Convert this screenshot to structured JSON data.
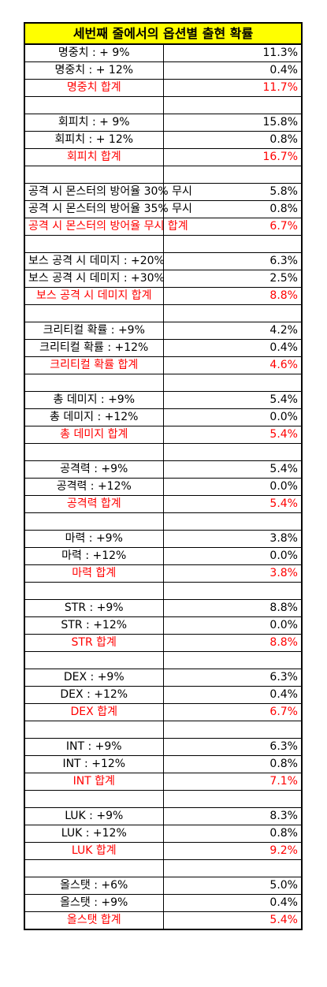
{
  "title": "세번째 줄에서의 옵션별 출현 확률",
  "groups": [
    {
      "rows": [
        [
          "명중치 : + 9%",
          "11.3%"
        ],
        [
          "명중치 : + 12%",
          "0.4%"
        ]
      ],
      "total": [
        "명중치 합계",
        "11.7%"
      ]
    },
    {
      "rows": [
        [
          "회피치 : + 9%",
          "15.8%"
        ],
        [
          "회피치 : + 12%",
          "0.8%"
        ]
      ],
      "total": [
        "회피치 합계",
        "16.7%"
      ]
    },
    {
      "rows": [
        [
          "공격 시 몬스터의 방어율 30% 무시",
          "5.8%"
        ],
        [
          "공격 시 몬스터의 방어율 35% 무시",
          "0.8%"
        ]
      ],
      "total": [
        "공격 시 몬스터의 방어율 무시 합계",
        "6.7%"
      ]
    },
    {
      "rows": [
        [
          "보스 공격 시 데미지 : +20%",
          "6.3%"
        ],
        [
          "보스 공격 시 데미지 : +30%",
          "2.5%"
        ]
      ],
      "total": [
        "보스 공격 시 데미지 합계",
        "8.8%"
      ]
    },
    {
      "rows": [
        [
          "크리티컬 확률 : +9%",
          "4.2%"
        ],
        [
          "크리티컬 확률 : +12%",
          "0.4%"
        ]
      ],
      "total": [
        "크리티컬 확률 합계",
        "4.6%"
      ]
    },
    {
      "rows": [
        [
          "총 데미지 : +9%",
          "5.4%"
        ],
        [
          "총 데미지 : +12%",
          "0.0%"
        ]
      ],
      "total": [
        "총 데미지 합계",
        "5.4%"
      ]
    },
    {
      "rows": [
        [
          "공격력 : +9%",
          "5.4%"
        ],
        [
          "공격력 : +12%",
          "0.0%"
        ]
      ],
      "total": [
        "공격력 합계",
        "5.4%"
      ]
    },
    {
      "rows": [
        [
          "마력 : +9%",
          "3.8%"
        ],
        [
          "마력 : +12%",
          "0.0%"
        ]
      ],
      "total": [
        "마력 합계",
        "3.8%"
      ]
    },
    {
      "rows": [
        [
          "STR : +9%",
          "8.8%"
        ],
        [
          "STR : +12%",
          "0.0%"
        ]
      ],
      "total": [
        "STR 합계",
        "8.8%"
      ]
    },
    {
      "rows": [
        [
          "DEX : +9%",
          "6.3%"
        ],
        [
          "DEX : +12%",
          "0.4%"
        ]
      ],
      "total": [
        "DEX 합계",
        "6.7%"
      ]
    },
    {
      "rows": [
        [
          "INT : +9%",
          "6.3%"
        ],
        [
          "INT : +12%",
          "0.8%"
        ]
      ],
      "total": [
        "INT 합계",
        "7.1%"
      ]
    },
    {
      "rows": [
        [
          "LUK : +9%",
          "8.3%"
        ],
        [
          "LUK : +12%",
          "0.8%"
        ]
      ],
      "total": [
        "LUK 합계",
        "9.2%"
      ]
    },
    {
      "rows": [
        [
          "올스탯 : +6%",
          "5.0%"
        ],
        [
          "올스탯 : +9%",
          "0.4%"
        ]
      ],
      "total": [
        "올스탯 합계",
        "5.4%"
      ]
    }
  ]
}
